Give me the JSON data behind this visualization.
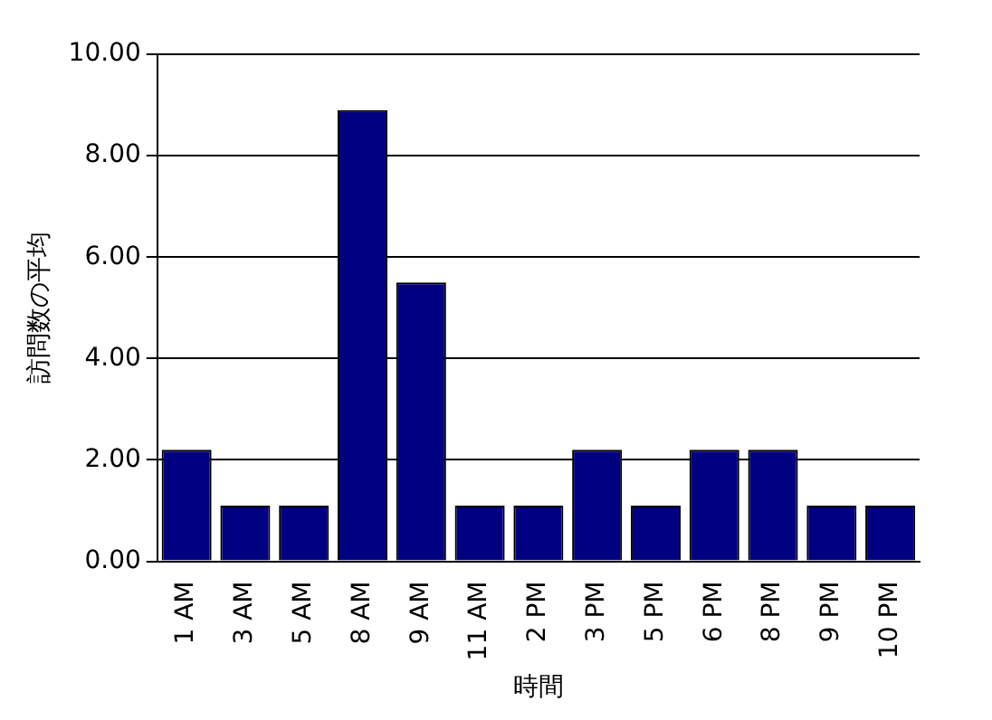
{
  "chart_data": {
    "type": "bar",
    "xlabel": "時間",
    "ylabel": "訪問数の平均",
    "categories": [
      "1 AM",
      "3 AM",
      "5 AM",
      "8 AM",
      "9 AM",
      "11 AM",
      "2 PM",
      "3 PM",
      "5 PM",
      "6 PM",
      "8 PM",
      "9 PM",
      "10 PM"
    ],
    "values": [
      2.2,
      1.1,
      1.1,
      8.9,
      5.5,
      1.1,
      1.1,
      2.2,
      1.1,
      2.2,
      2.2,
      1.1,
      1.1
    ],
    "color": "#000080",
    "ylim": [
      0,
      10
    ],
    "yticks": [
      {
        "value": 0,
        "label": "0.00"
      },
      {
        "value": 2,
        "label": "2.00"
      },
      {
        "value": 4,
        "label": "4.00"
      },
      {
        "value": 6,
        "label": "6.00"
      },
      {
        "value": 8,
        "label": "8.00"
      },
      {
        "value": 10,
        "label": "10.00"
      }
    ],
    "grid": "y",
    "legend": false
  }
}
